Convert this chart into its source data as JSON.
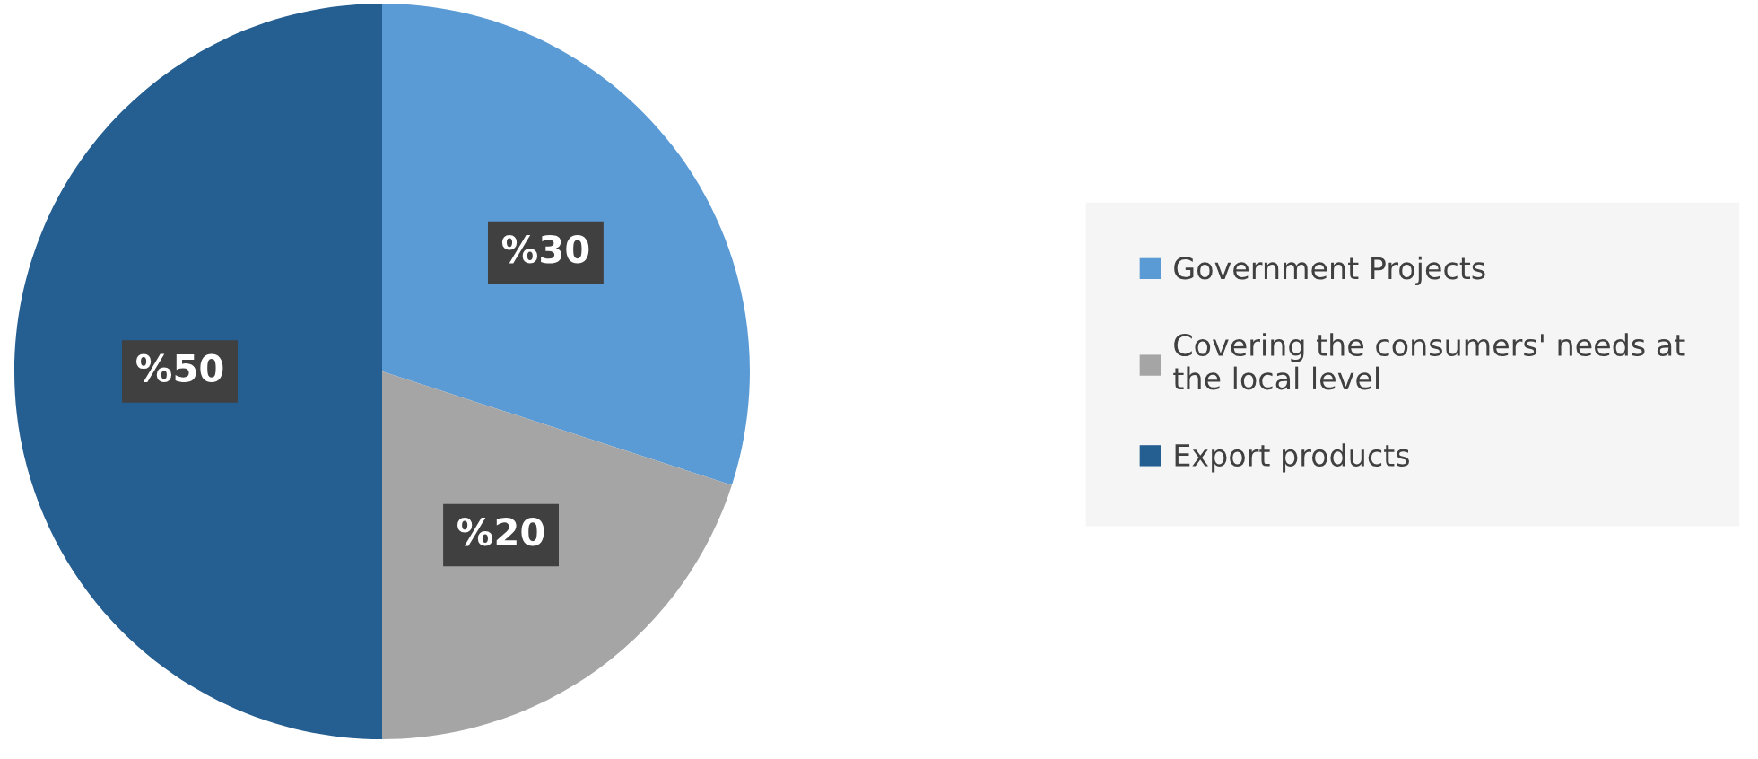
{
  "chart_data": {
    "type": "pie",
    "categories": [
      "Government Projects",
      "Covering the consumers' needs at the local level",
      "Export products"
    ],
    "values": [
      30,
      20,
      50
    ],
    "colors": [
      "#5b9bd5",
      "#a5a5a5",
      "#255e91"
    ],
    "value_labels": [
      "%30",
      "%20",
      "%50"
    ],
    "legend": "right"
  }
}
